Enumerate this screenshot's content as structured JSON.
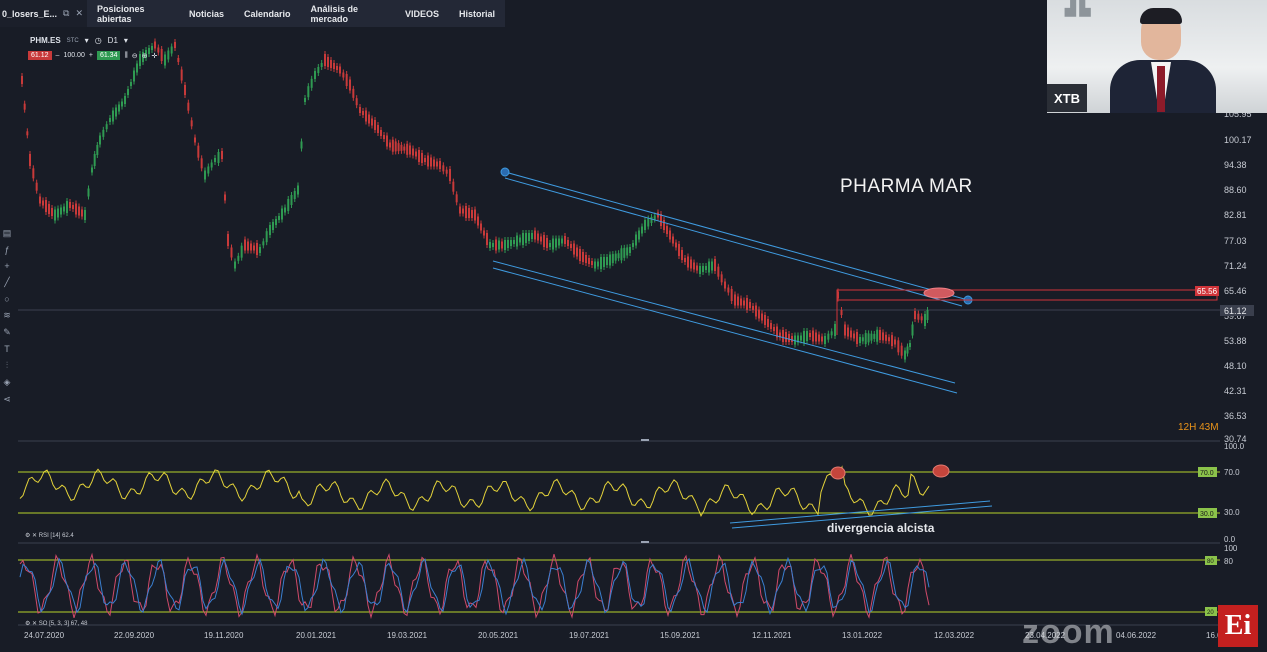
{
  "topbar": {
    "active_tab": "0_losers_E...",
    "tabs": [
      "Posiciones abiertas",
      "Noticias",
      "Calendario",
      "Análisis de mercado",
      "VIDEOS",
      "Historial"
    ]
  },
  "symbol": {
    "name": "PHM.ES",
    "type": "STC",
    "timeframe": "D1",
    "sell_price": "61.12",
    "volume": "100.00",
    "buy_price": "61.34"
  },
  "chart_title": "PHARMA MAR",
  "annotation": "divergencia alcista",
  "timer": "12H 43M",
  "price_axis": {
    "labels": [
      "105.95",
      "100.17",
      "94.38",
      "88.60",
      "82.81",
      "77.03",
      "71.24",
      "65.46",
      "59.67",
      "53.88",
      "48.10",
      "42.31",
      "36.53",
      "30.74"
    ],
    "highlight_resistance": "65.56",
    "current_price": "61.12"
  },
  "rsi": {
    "label": "RSI [14] 62.4",
    "axis": [
      "100.0",
      "70.0",
      "30.0",
      "0.0"
    ],
    "overbought_badge": "70.0",
    "oversold_badge": "30.0"
  },
  "stochastic": {
    "label": "SO [5, 3, 3] 67, 48",
    "axis": [
      "100",
      "80",
      "20"
    ],
    "badge_high": "80",
    "badge_low": "20"
  },
  "date_axis": [
    "24.07.2020",
    "22.09.2020",
    "19.11.2020",
    "20.01.2021",
    "19.03.2021",
    "20.05.2021",
    "19.07.2021",
    "15.09.2021",
    "12.11.2021",
    "13.01.2022",
    "12.03.2022",
    "23.04.2022",
    "04.06.2022",
    "16.07.2022"
  ],
  "webcam": {
    "badge": "XTB"
  },
  "watermark": "zoom",
  "logo": "Ei",
  "colors": {
    "background": "#181c26",
    "up": "#2f9a52",
    "down": "#c83a3a",
    "channel": "#3f9be0",
    "rsi_line": "#e3d23a",
    "guide": "#b6d22a",
    "resistance": "#d0343a"
  }
}
